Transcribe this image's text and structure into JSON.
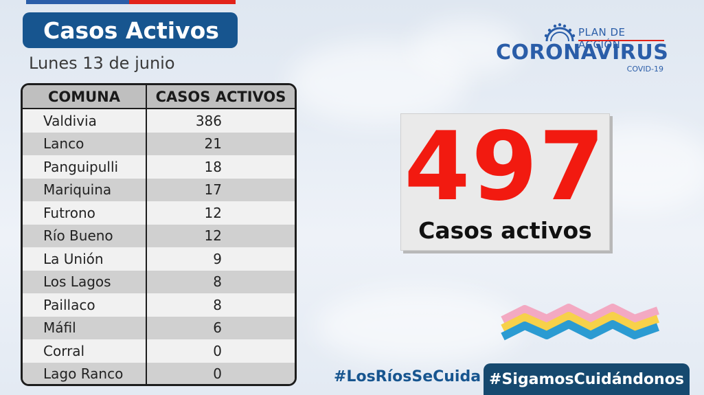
{
  "header": {
    "title": "Casos Activos",
    "date": "Lunes 13 de junio"
  },
  "table": {
    "columns": [
      "COMUNA",
      "CASOS ACTIVOS"
    ],
    "rows": [
      {
        "comuna": "Valdivia",
        "casos": "386"
      },
      {
        "comuna": "Lanco",
        "casos": "21"
      },
      {
        "comuna": "Panguipulli",
        "casos": "18"
      },
      {
        "comuna": "Mariquina",
        "casos": "17"
      },
      {
        "comuna": "Futrono",
        "casos": "12"
      },
      {
        "comuna": "Río Bueno",
        "casos": "12"
      },
      {
        "comuna": "La Unión",
        "casos": "9"
      },
      {
        "comuna": "Los Lagos",
        "casos": "8"
      },
      {
        "comuna": "Paillaco",
        "casos": "8"
      },
      {
        "comuna": "Máfil",
        "casos": "6"
      },
      {
        "comuna": "Corral",
        "casos": "0"
      },
      {
        "comuna": "Lago Ranco",
        "casos": "0"
      }
    ]
  },
  "logo": {
    "plan": "PLAN DE ACCIÓN",
    "name": "CORONAVIRUS",
    "sub": "COVID-19"
  },
  "summary": {
    "total": "497",
    "label": "Casos activos"
  },
  "footer": {
    "hashtag_region": "#LosRíosSeCuida",
    "hashtag_main": "#SigamosCuidándonos"
  },
  "colors": {
    "title_bg": "#17558f",
    "big_number": "#f21a10",
    "brand_blue": "#2a5da8",
    "flag_red": "#e2231a",
    "hashtag_bg": "#16496f"
  }
}
